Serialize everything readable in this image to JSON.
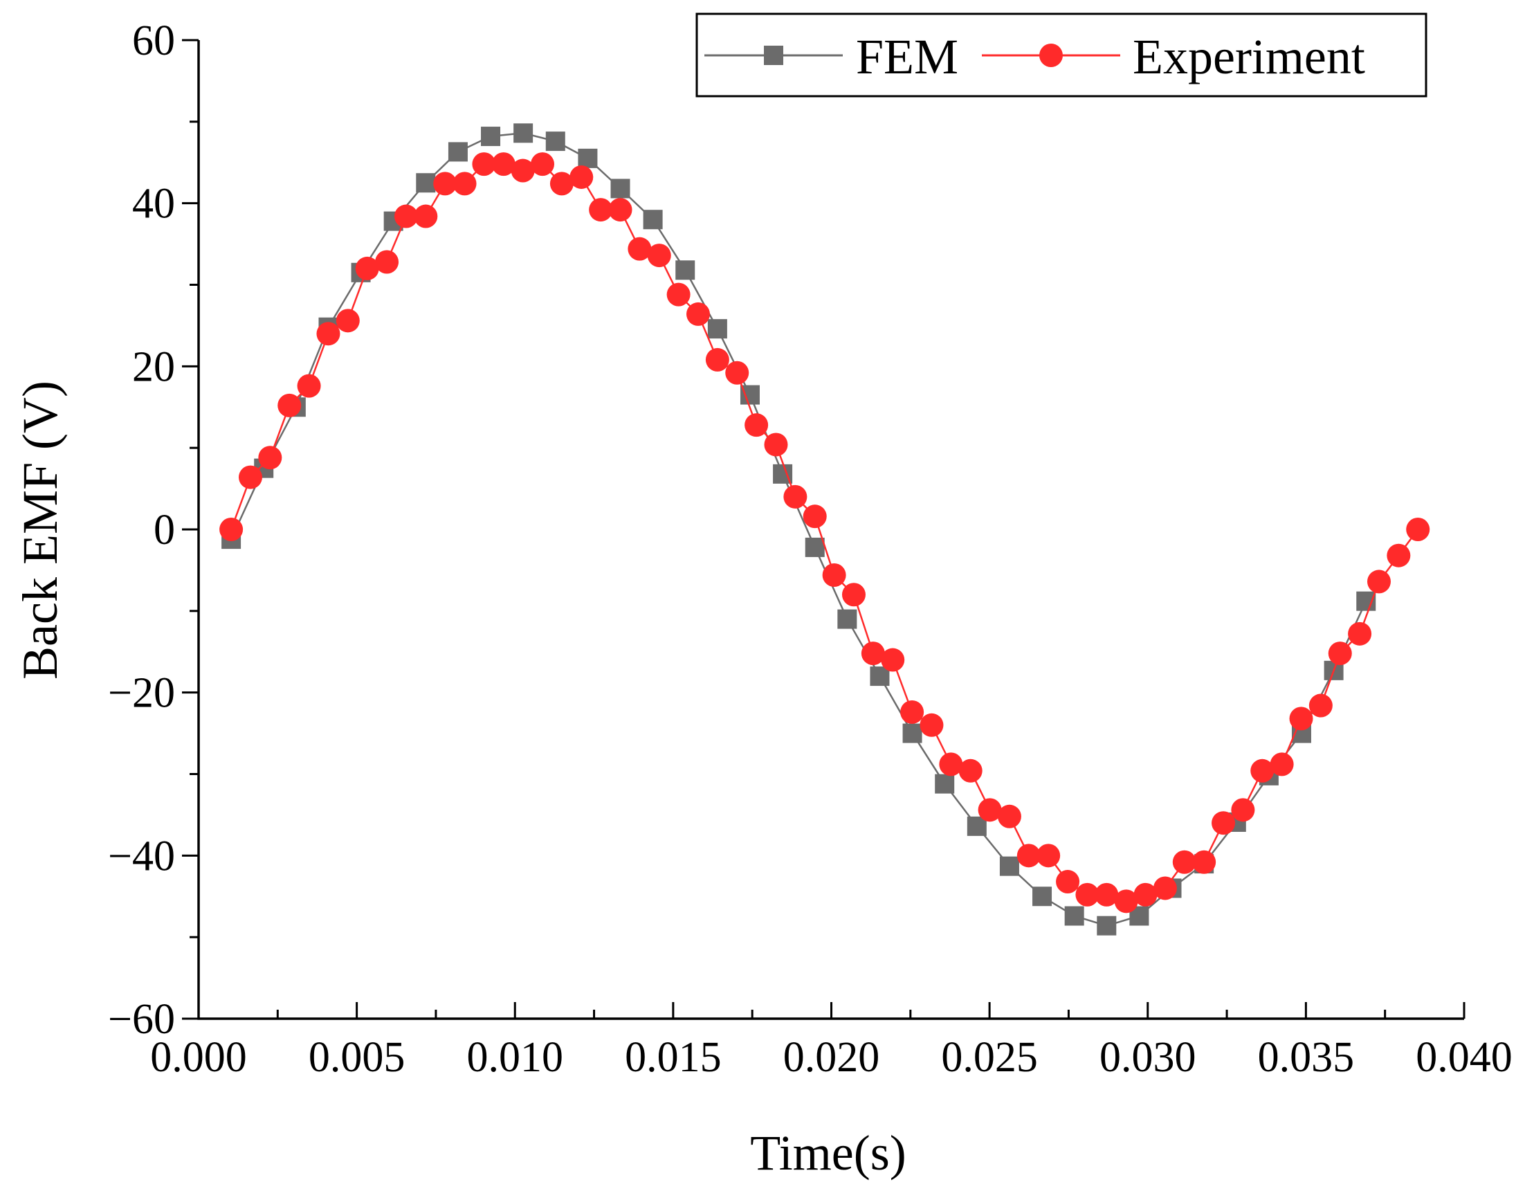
{
  "chart_data": {
    "type": "line",
    "title": "",
    "xlabel": "Time(s)",
    "ylabel": "Back EMF (V)",
    "xlim": [
      0.0,
      0.04
    ],
    "ylim": [
      -60,
      60
    ],
    "xticks": [
      0.0,
      0.005,
      0.01,
      0.015,
      0.02,
      0.025,
      0.03,
      0.035,
      0.04
    ],
    "xtick_labels": [
      "0.000",
      "0.005",
      "0.010",
      "0.015",
      "0.020",
      "0.025",
      "0.030",
      "0.035",
      "0.040"
    ],
    "yticks": [
      -60,
      -40,
      -20,
      0,
      20,
      40,
      60
    ],
    "ytick_labels": [
      "−60",
      "−40",
      "−20",
      "0",
      "20",
      "40",
      "60"
    ],
    "grid": false,
    "legend_position": "top-right",
    "series": [
      {
        "name": "FEM",
        "color": "#6b6b6b",
        "marker": "square",
        "x": [
          0.00103,
          0.00206,
          0.00308,
          0.0041,
          0.00513,
          0.00616,
          0.00718,
          0.0082,
          0.00923,
          0.01026,
          0.01128,
          0.0123,
          0.01333,
          0.01436,
          0.01538,
          0.0164,
          0.01743,
          0.01846,
          0.01948,
          0.0205,
          0.02153,
          0.02256,
          0.02358,
          0.0246,
          0.02563,
          0.02666,
          0.02768,
          0.0287,
          0.02973,
          0.03076,
          0.03178,
          0.0328,
          0.03383,
          0.03486,
          0.03588,
          0.0369
        ],
        "y": [
          -1.2,
          7.5,
          15.0,
          24.8,
          31.5,
          37.8,
          42.5,
          46.3,
          48.2,
          48.6,
          47.6,
          45.5,
          41.8,
          38.0,
          31.8,
          24.6,
          16.5,
          6.8,
          -2.2,
          -11.0,
          -18.0,
          -25.0,
          -31.2,
          -36.4,
          -41.3,
          -45.0,
          -47.4,
          -48.6,
          -47.4,
          -44.0,
          -41.0,
          -35.9,
          -30.2,
          -25.0,
          -17.3,
          -8.8
        ]
      },
      {
        "name": "Experiment",
        "color": "#ff2a2a",
        "marker": "circle",
        "x": [
          0.00103,
          0.00164,
          0.00226,
          0.00287,
          0.00349,
          0.0041,
          0.00472,
          0.00533,
          0.00595,
          0.00656,
          0.00718,
          0.00779,
          0.00841,
          0.00902,
          0.00964,
          0.01025,
          0.01087,
          0.01148,
          0.0121,
          0.01271,
          0.01333,
          0.01394,
          0.01456,
          0.01517,
          0.01579,
          0.0164,
          0.01702,
          0.01763,
          0.01825,
          0.01886,
          0.01948,
          0.02009,
          0.02071,
          0.02132,
          0.02194,
          0.02255,
          0.02317,
          0.02378,
          0.0244,
          0.02501,
          0.02563,
          0.02624,
          0.02686,
          0.02747,
          0.02809,
          0.0287,
          0.02932,
          0.02993,
          0.03055,
          0.03116,
          0.03178,
          0.03239,
          0.03301,
          0.03362,
          0.03424,
          0.03485,
          0.03547,
          0.03608,
          0.0367,
          0.03731,
          0.03793,
          0.03854
        ],
        "y": [
          0.0,
          6.4,
          8.8,
          15.2,
          17.6,
          24.0,
          25.6,
          32.0,
          32.8,
          38.4,
          38.4,
          42.4,
          42.4,
          44.8,
          44.8,
          44.0,
          44.8,
          42.4,
          43.2,
          39.2,
          39.2,
          34.4,
          33.6,
          28.8,
          26.4,
          20.8,
          19.2,
          12.8,
          10.4,
          4.0,
          1.6,
          -5.6,
          -8.0,
          -15.2,
          -16.0,
          -22.4,
          -24.0,
          -28.8,
          -29.6,
          -34.4,
          -35.2,
          -40.0,
          -40.0,
          -43.2,
          -44.8,
          -44.8,
          -45.6,
          -44.8,
          -44.0,
          -40.8,
          -40.8,
          -36.0,
          -34.4,
          -29.6,
          -28.8,
          -23.2,
          -21.6,
          -15.2,
          -12.8,
          -6.4,
          -3.2,
          0.0
        ]
      }
    ]
  }
}
